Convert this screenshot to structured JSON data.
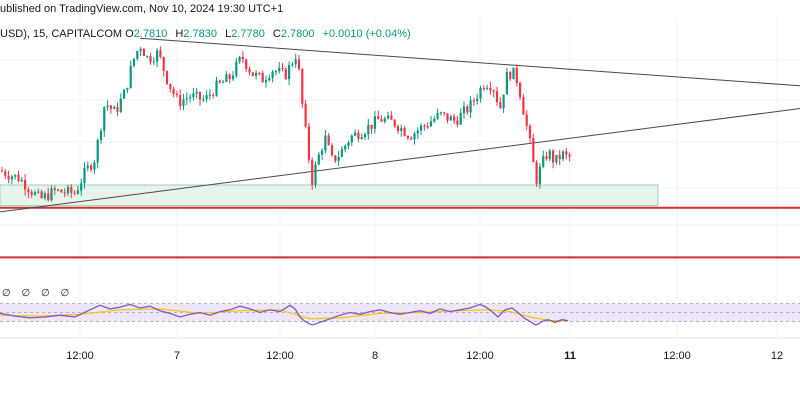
{
  "header": {
    "published": "ublished on TradingView.com, Nov 10, 2024 19:30 UTC+1",
    "symbol": "USD), 15, CAPITALCOM",
    "o_label": "O",
    "o_value": "2.7810",
    "h_label": "H",
    "h_value": "2.7830",
    "l_label": "L",
    "l_value": "2.7780",
    "c_label": "C",
    "c_value": "2.7800",
    "change": "+0.0010 (+0.04%)"
  },
  "rsi_label": "∅ ∅ ∅ ∅",
  "colors": {
    "up": "#089981",
    "down": "#f23645",
    "trendline": "#4a4a4a",
    "support_line": "#d32f2f",
    "zone_fill": "#e6f4ea",
    "zone_stroke": "#9ccfb0",
    "rsi_line": "#7e57c2",
    "rsi_ma": "#f5c400",
    "rsi_band": "#ece6f8"
  },
  "chart_data": {
    "type": "candlestick",
    "x_ticks": [
      {
        "label": "12:00",
        "bold": false
      },
      {
        "label": "7",
        "bold": false
      },
      {
        "label": "12:00",
        "bold": false
      },
      {
        "label": "8",
        "bold": false
      },
      {
        "label": "12:00",
        "bold": false
      },
      {
        "label": "11",
        "bold": true
      },
      {
        "label": "12:00",
        "bold": false
      },
      {
        "label": "12",
        "bold": false
      }
    ],
    "price_path": [
      [
        0,
        2.752
      ],
      [
        20,
        2.748
      ],
      [
        40,
        2.738
      ],
      [
        55,
        2.742
      ],
      [
        75,
        2.741
      ],
      [
        85,
        2.751
      ],
      [
        95,
        2.758
      ],
      [
        105,
        2.785
      ],
      [
        115,
        2.78
      ],
      [
        125,
        2.79
      ],
      [
        133,
        2.805
      ],
      [
        140,
        2.813
      ],
      [
        148,
        2.806
      ],
      [
        158,
        2.809
      ],
      [
        168,
        2.795
      ],
      [
        178,
        2.785
      ],
      [
        190,
        2.788
      ],
      [
        205,
        2.786
      ],
      [
        215,
        2.792
      ],
      [
        230,
        2.797
      ],
      [
        242,
        2.807
      ],
      [
        252,
        2.799
      ],
      [
        262,
        2.796
      ],
      [
        272,
        2.801
      ],
      [
        285,
        2.798
      ],
      [
        297,
        2.809
      ],
      [
        302,
        2.785
      ],
      [
        307,
        2.765
      ],
      [
        312,
        2.747
      ],
      [
        318,
        2.758
      ],
      [
        325,
        2.768
      ],
      [
        332,
        2.757
      ],
      [
        340,
        2.76
      ],
      [
        350,
        2.768
      ],
      [
        365,
        2.772
      ],
      [
        380,
        2.777
      ],
      [
        395,
        2.775
      ],
      [
        410,
        2.769
      ],
      [
        425,
        2.774
      ],
      [
        440,
        2.779
      ],
      [
        455,
        2.776
      ],
      [
        470,
        2.783
      ],
      [
        485,
        2.795
      ],
      [
        493,
        2.793
      ],
      [
        500,
        2.782
      ],
      [
        506,
        2.797
      ],
      [
        512,
        2.8
      ],
      [
        518,
        2.795
      ],
      [
        524,
        2.78
      ],
      [
        530,
        2.765
      ],
      [
        536,
        2.747
      ],
      [
        542,
        2.755
      ],
      [
        548,
        2.761
      ],
      [
        555,
        2.756
      ],
      [
        562,
        2.76
      ],
      [
        568,
        2.758
      ],
      [
        572,
        2.759
      ]
    ],
    "trendline_upper": [
      [
        140,
        2.816
      ],
      [
        800,
        2.793
      ]
    ],
    "trendline_lower": [
      [
        0,
        2.732
      ],
      [
        800,
        2.782
      ]
    ],
    "demand_zone": {
      "x_start": 0,
      "x_end": 658,
      "price_top": 2.745,
      "price_bottom": 2.735
    },
    "support_lines": [
      2.734,
      2.71
    ],
    "rsi": {
      "band_upper": 70,
      "band_lower": 30,
      "ylim": [
        0,
        100
      ],
      "values": [
        [
          0,
          48
        ],
        [
          15,
          42
        ],
        [
          30,
          38
        ],
        [
          45,
          40
        ],
        [
          60,
          44
        ],
        [
          75,
          40
        ],
        [
          90,
          56
        ],
        [
          100,
          66
        ],
        [
          110,
          58
        ],
        [
          120,
          62
        ],
        [
          130,
          68
        ],
        [
          140,
          60
        ],
        [
          150,
          64
        ],
        [
          160,
          54
        ],
        [
          170,
          48
        ],
        [
          180,
          40
        ],
        [
          190,
          46
        ],
        [
          200,
          50
        ],
        [
          210,
          44
        ],
        [
          220,
          52
        ],
        [
          230,
          56
        ],
        [
          240,
          64
        ],
        [
          250,
          58
        ],
        [
          260,
          50
        ],
        [
          270,
          56
        ],
        [
          280,
          52
        ],
        [
          290,
          66
        ],
        [
          295,
          58
        ],
        [
          300,
          40
        ],
        [
          305,
          30
        ],
        [
          312,
          22
        ],
        [
          320,
          28
        ],
        [
          330,
          36
        ],
        [
          340,
          44
        ],
        [
          350,
          50
        ],
        [
          360,
          46
        ],
        [
          370,
          52
        ],
        [
          380,
          56
        ],
        [
          390,
          50
        ],
        [
          400,
          46
        ],
        [
          410,
          50
        ],
        [
          420,
          54
        ],
        [
          430,
          48
        ],
        [
          440,
          58
        ],
        [
          450,
          52
        ],
        [
          460,
          56
        ],
        [
          470,
          60
        ],
        [
          480,
          68
        ],
        [
          486,
          62
        ],
        [
          492,
          52
        ],
        [
          498,
          40
        ],
        [
          505,
          56
        ],
        [
          512,
          60
        ],
        [
          518,
          50
        ],
        [
          524,
          38
        ],
        [
          530,
          30
        ],
        [
          536,
          22
        ],
        [
          542,
          30
        ],
        [
          548,
          34
        ],
        [
          555,
          28
        ],
        [
          562,
          34
        ],
        [
          568,
          32
        ]
      ],
      "ma": [
        [
          0,
          44
        ],
        [
          40,
          42
        ],
        [
          80,
          46
        ],
        [
          120,
          56
        ],
        [
          160,
          58
        ],
        [
          200,
          48
        ],
        [
          240,
          54
        ],
        [
          280,
          56
        ],
        [
          310,
          36
        ],
        [
          340,
          38
        ],
        [
          380,
          48
        ],
        [
          420,
          50
        ],
        [
          460,
          54
        ],
        [
          490,
          56
        ],
        [
          510,
          52
        ],
        [
          530,
          40
        ],
        [
          550,
          32
        ],
        [
          568,
          32
        ]
      ]
    }
  }
}
